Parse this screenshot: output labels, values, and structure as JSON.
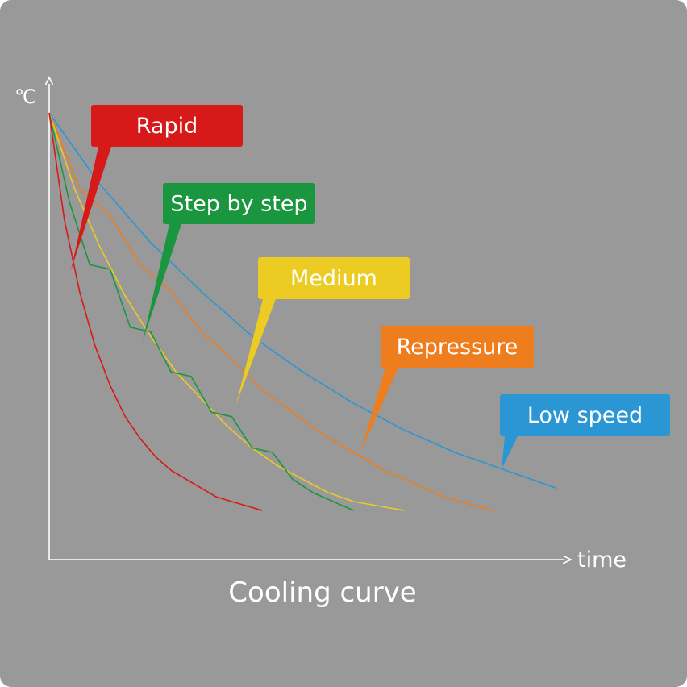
{
  "chart_data": {
    "type": "line",
    "title": "Cooling curve",
    "xlabel": "time",
    "ylabel": "℃",
    "grid": false,
    "legend": "callouts",
    "series": [
      {
        "name": "Low speed",
        "color": "#2a96d4",
        "x": [
          0,
          10,
          20,
          30,
          40,
          50,
          60,
          70,
          80,
          90,
          100
        ],
        "y": [
          100,
          84,
          71,
          60,
          50,
          42,
          35,
          29,
          24,
          20,
          16
        ]
      },
      {
        "name": "Repressure",
        "color": "#ee7d1d",
        "x": [
          0,
          6,
          12,
          18,
          24,
          30,
          36,
          42,
          48,
          54,
          60,
          66,
          72,
          78,
          84,
          88
        ],
        "y": [
          100,
          83,
          77,
          66,
          60,
          51,
          45,
          38,
          33,
          28,
          24,
          20,
          17,
          14,
          12,
          11
        ]
      },
      {
        "name": "Medium",
        "color": "#eccb22",
        "x": [
          0,
          5,
          10,
          15,
          20,
          25,
          30,
          35,
          40,
          45,
          50,
          55,
          60,
          65,
          70
        ],
        "y": [
          100,
          83,
          70,
          59,
          50,
          42,
          36,
          30,
          25,
          21,
          18,
          15,
          13,
          12,
          11
        ]
      },
      {
        "name": "Step by step",
        "color": "#1a963f",
        "x": [
          0,
          4,
          8,
          12,
          16,
          20,
          24,
          28,
          32,
          36,
          40,
          44,
          48,
          52,
          56,
          60
        ],
        "y": [
          100,
          80,
          66,
          65,
          52,
          51,
          42,
          41,
          33,
          32,
          25,
          24,
          18,
          15,
          13,
          11
        ]
      },
      {
        "name": "Rapid",
        "color": "#d7191a",
        "x": [
          0,
          3,
          6,
          9,
          12,
          15,
          18,
          21,
          24,
          27,
          30,
          33,
          36,
          39,
          42
        ],
        "y": [
          100,
          76,
          60,
          48,
          39,
          32,
          27,
          23,
          20,
          18,
          16,
          14,
          13,
          12,
          11
        ]
      }
    ],
    "xlim": [
      0,
      100
    ],
    "ylim": [
      0,
      100
    ],
    "callouts": [
      {
        "label": "Rapid",
        "color": "#d7191a"
      },
      {
        "label": "Step by step",
        "color": "#1a963f"
      },
      {
        "label": "Medium",
        "color": "#eccb22"
      },
      {
        "label": "Repressure",
        "color": "#ee7d1d"
      },
      {
        "label": "Low speed",
        "color": "#2a96d4"
      }
    ],
    "axis_color": "#ffffff",
    "background": "#999999"
  }
}
